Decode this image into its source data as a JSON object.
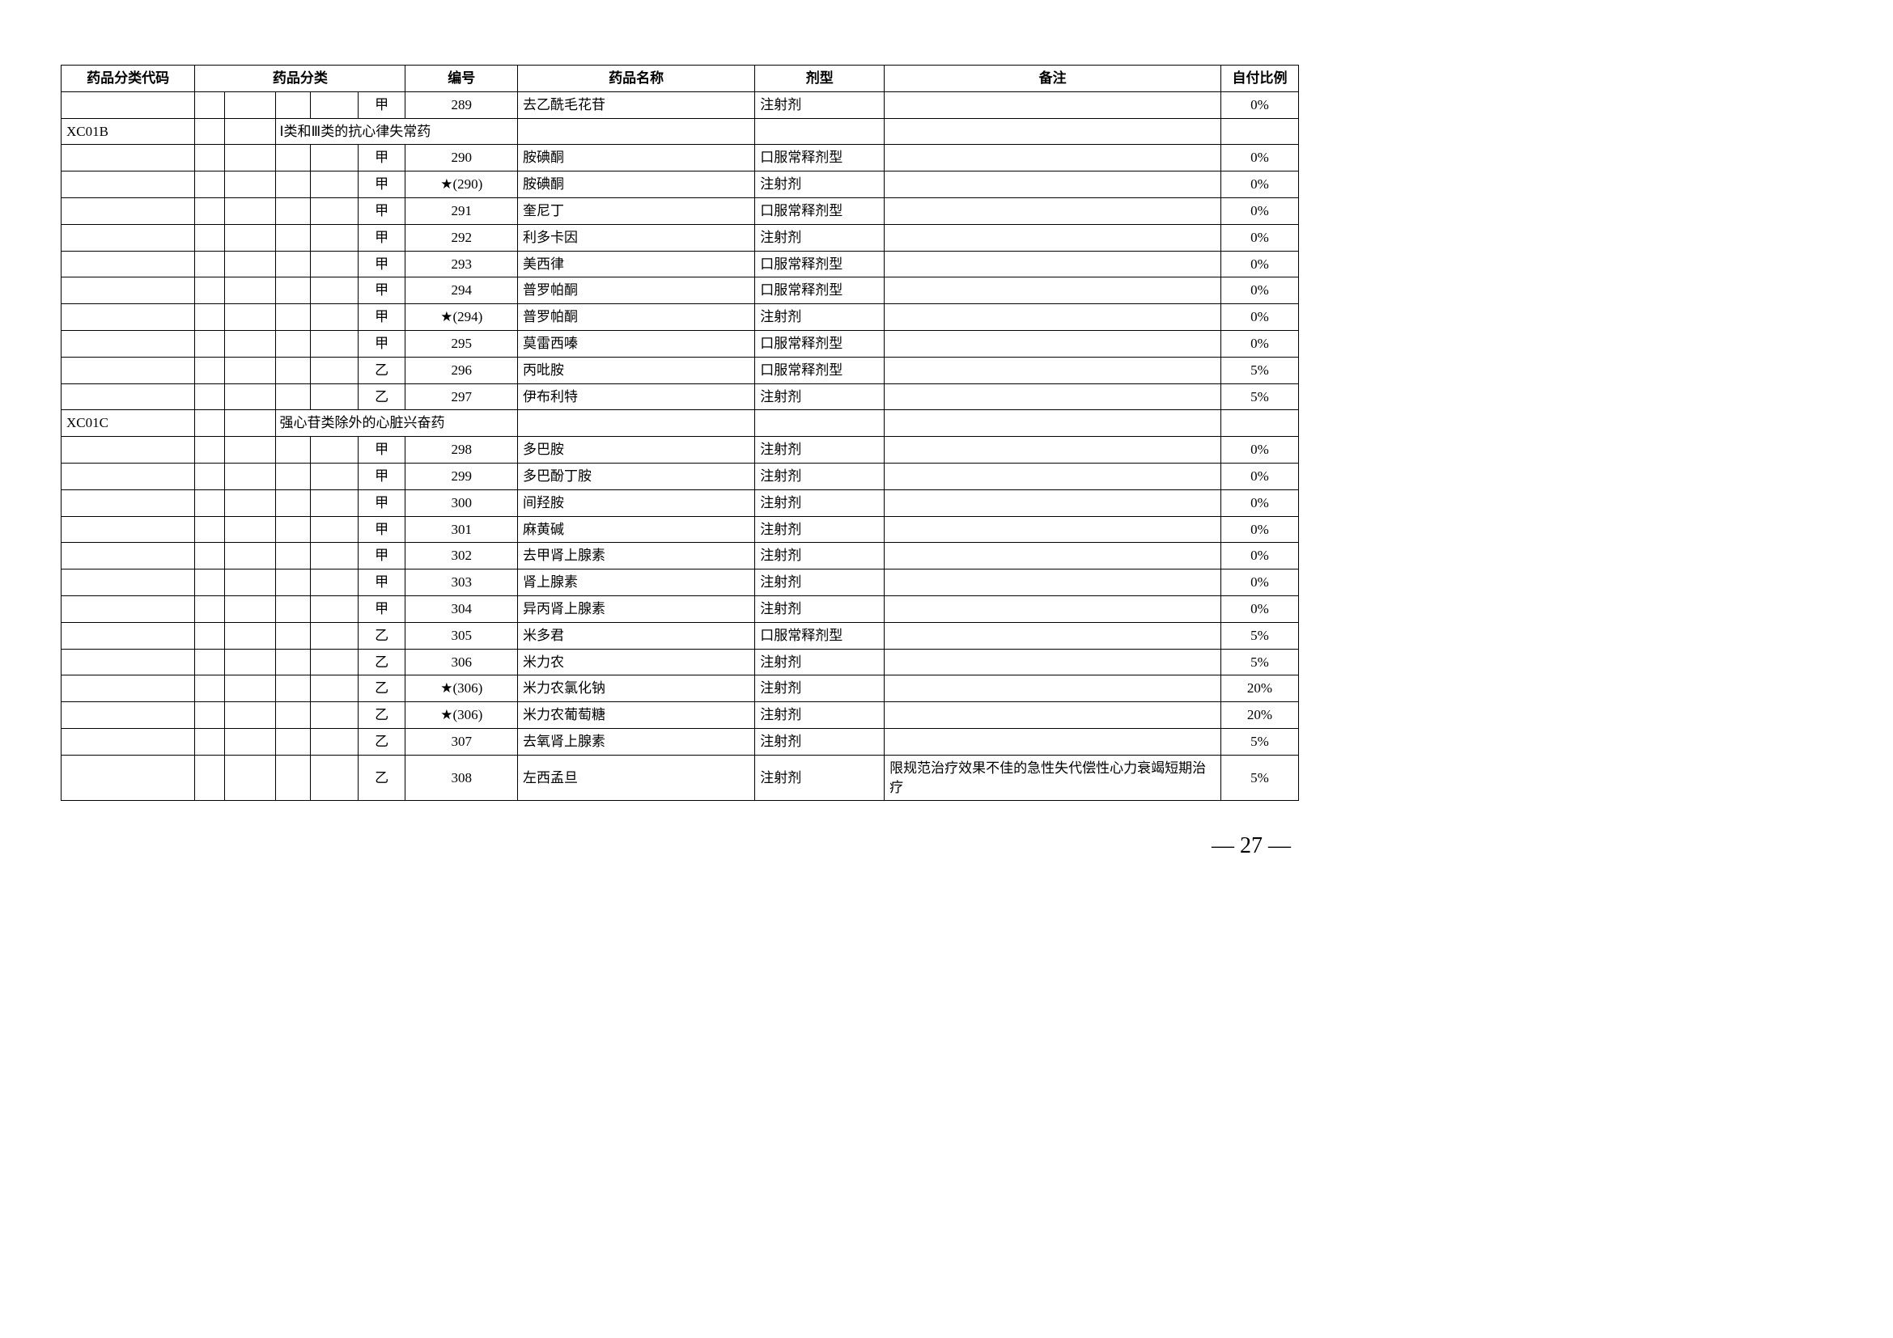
{
  "headers": {
    "code": "药品分类代码",
    "category": "药品分类",
    "number": "编号",
    "name": "药品名称",
    "form": "剂型",
    "note": "备注",
    "pay": "自付比例"
  },
  "rows": [
    {
      "type": "drug",
      "code": "",
      "level": "甲",
      "num": "289",
      "name": "去乙酰毛花苷",
      "form": "注射剂",
      "note": "",
      "pay": "0%"
    },
    {
      "type": "cat",
      "code": "XC01B",
      "category": "Ⅰ类和Ⅲ类的抗心律失常药"
    },
    {
      "type": "drug",
      "code": "",
      "level": "甲",
      "num": "290",
      "name": "胺碘酮",
      "form": "口服常释剂型",
      "note": "",
      "pay": "0%"
    },
    {
      "type": "drug",
      "code": "",
      "level": "甲",
      "num": "★(290)",
      "name": "胺碘酮",
      "form": "注射剂",
      "note": "",
      "pay": "0%"
    },
    {
      "type": "drug",
      "code": "",
      "level": "甲",
      "num": "291",
      "name": "奎尼丁",
      "form": "口服常释剂型",
      "note": "",
      "pay": "0%"
    },
    {
      "type": "drug",
      "code": "",
      "level": "甲",
      "num": "292",
      "name": "利多卡因",
      "form": "注射剂",
      "note": "",
      "pay": "0%"
    },
    {
      "type": "drug",
      "code": "",
      "level": "甲",
      "num": "293",
      "name": "美西律",
      "form": "口服常释剂型",
      "note": "",
      "pay": "0%"
    },
    {
      "type": "drug",
      "code": "",
      "level": "甲",
      "num": "294",
      "name": "普罗帕酮",
      "form": "口服常释剂型",
      "note": "",
      "pay": "0%"
    },
    {
      "type": "drug",
      "code": "",
      "level": "甲",
      "num": "★(294)",
      "name": "普罗帕酮",
      "form": "注射剂",
      "note": "",
      "pay": "0%"
    },
    {
      "type": "drug",
      "code": "",
      "level": "甲",
      "num": "295",
      "name": "莫雷西嗪",
      "form": "口服常释剂型",
      "note": "",
      "pay": "0%"
    },
    {
      "type": "drug",
      "code": "",
      "level": "乙",
      "num": "296",
      "name": "丙吡胺",
      "form": "口服常释剂型",
      "note": "",
      "pay": "5%"
    },
    {
      "type": "drug",
      "code": "",
      "level": "乙",
      "num": "297",
      "name": "伊布利特",
      "form": "注射剂",
      "note": "",
      "pay": "5%"
    },
    {
      "type": "cat",
      "code": "XC01C",
      "category": "强心苷类除外的心脏兴奋药"
    },
    {
      "type": "drug",
      "code": "",
      "level": "甲",
      "num": "298",
      "name": "多巴胺",
      "form": "注射剂",
      "note": "",
      "pay": "0%"
    },
    {
      "type": "drug",
      "code": "",
      "level": "甲",
      "num": "299",
      "name": "多巴酚丁胺",
      "form": "注射剂",
      "note": "",
      "pay": "0%"
    },
    {
      "type": "drug",
      "code": "",
      "level": "甲",
      "num": "300",
      "name": "间羟胺",
      "form": "注射剂",
      "note": "",
      "pay": "0%"
    },
    {
      "type": "drug",
      "code": "",
      "level": "甲",
      "num": "301",
      "name": "麻黄碱",
      "form": "注射剂",
      "note": "",
      "pay": "0%"
    },
    {
      "type": "drug",
      "code": "",
      "level": "甲",
      "num": "302",
      "name": "去甲肾上腺素",
      "form": "注射剂",
      "note": "",
      "pay": "0%"
    },
    {
      "type": "drug",
      "code": "",
      "level": "甲",
      "num": "303",
      "name": "肾上腺素",
      "form": "注射剂",
      "note": "",
      "pay": "0%"
    },
    {
      "type": "drug",
      "code": "",
      "level": "甲",
      "num": "304",
      "name": "异丙肾上腺素",
      "form": "注射剂",
      "note": "",
      "pay": "0%"
    },
    {
      "type": "drug",
      "code": "",
      "level": "乙",
      "num": "305",
      "name": "米多君",
      "form": "口服常释剂型",
      "note": "",
      "pay": "5%"
    },
    {
      "type": "drug",
      "code": "",
      "level": "乙",
      "num": "306",
      "name": "米力农",
      "form": "注射剂",
      "note": "",
      "pay": "5%"
    },
    {
      "type": "drug",
      "code": "",
      "level": "乙",
      "num": "★(306)",
      "name": "米力农氯化钠",
      "form": "注射剂",
      "note": "",
      "pay": "20%"
    },
    {
      "type": "drug",
      "code": "",
      "level": "乙",
      "num": "★(306)",
      "name": "米力农葡萄糖",
      "form": "注射剂",
      "note": "",
      "pay": "20%"
    },
    {
      "type": "drug",
      "code": "",
      "level": "乙",
      "num": "307",
      "name": "去氧肾上腺素",
      "form": "注射剂",
      "note": "",
      "pay": "5%"
    },
    {
      "type": "drug",
      "code": "",
      "level": "乙",
      "num": "308",
      "name": "左西孟旦",
      "form": "注射剂",
      "note": "限规范治疗效果不佳的急性失代偿性心力衰竭短期治疗",
      "pay": "5%"
    }
  ],
  "pageNumber": "— 27 —"
}
